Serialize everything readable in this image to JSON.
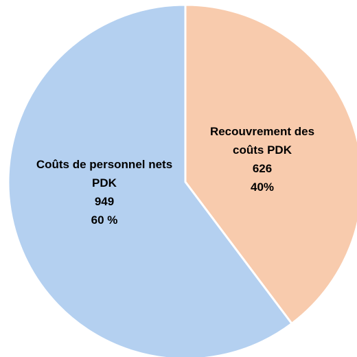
{
  "chart_data": {
    "type": "pie",
    "categories": [
      "Recouvrement des coûts PDK",
      "Coûts de personnel nets PDK"
    ],
    "values": [
      626,
      949
    ],
    "percent_labels": [
      "40%",
      "60 %"
    ],
    "colors": [
      "#f8cbad",
      "#b4d0f0"
    ]
  }
}
